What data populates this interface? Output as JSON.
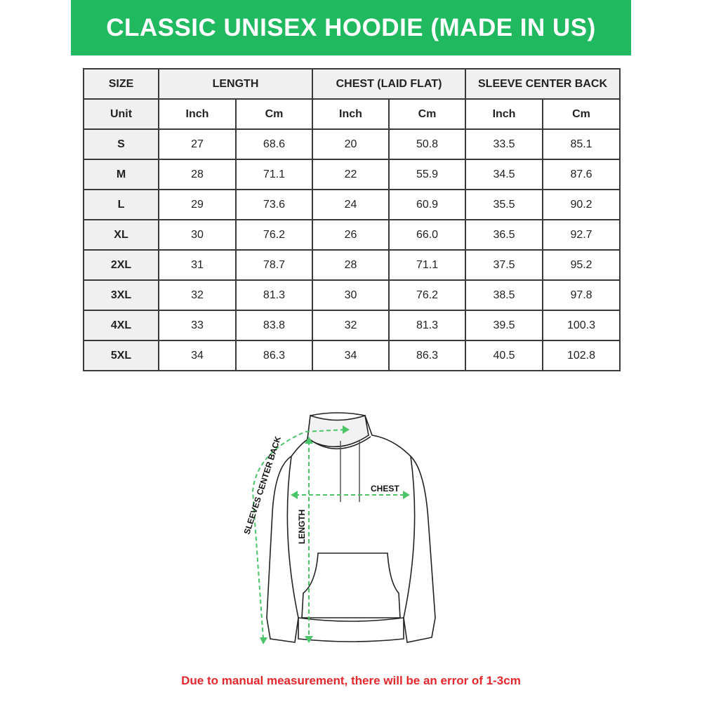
{
  "title": "CLASSIC UNISEX HOODIE (MADE IN US)",
  "colors": {
    "banner": "#20b95f",
    "arrows": "#4cc46a",
    "note": "#e5262b"
  },
  "table": {
    "groups": [
      "SIZE",
      "LENGTH",
      "CHEST (LAID FLAT)",
      "SLEEVE CENTER BACK"
    ],
    "units": [
      "Unit",
      "Inch",
      "Cm",
      "Inch",
      "Cm",
      "Inch",
      "Cm"
    ],
    "rows": [
      [
        "S",
        "27",
        "68.6",
        "20",
        "50.8",
        "33.5",
        "85.1"
      ],
      [
        "M",
        "28",
        "71.1",
        "22",
        "55.9",
        "34.5",
        "87.6"
      ],
      [
        "L",
        "29",
        "73.6",
        "24",
        "60.9",
        "35.5",
        "90.2"
      ],
      [
        "XL",
        "30",
        "76.2",
        "26",
        "66.0",
        "36.5",
        "92.7"
      ],
      [
        "2XL",
        "31",
        "78.7",
        "28",
        "71.1",
        "37.5",
        "95.2"
      ],
      [
        "3XL",
        "32",
        "81.3",
        "30",
        "76.2",
        "38.5",
        "97.8"
      ],
      [
        "4XL",
        "33",
        "83.8",
        "32",
        "81.3",
        "39.5",
        "100.3"
      ],
      [
        "5XL",
        "34",
        "86.3",
        "34",
        "86.3",
        "40.5",
        "102.8"
      ]
    ]
  },
  "diagram": {
    "chest": "CHEST",
    "length": "LENGTH",
    "sleeve": "SLEEVES CENTER BACK"
  },
  "note": "Due to manual measurement, there will be an error of 1-3cm"
}
